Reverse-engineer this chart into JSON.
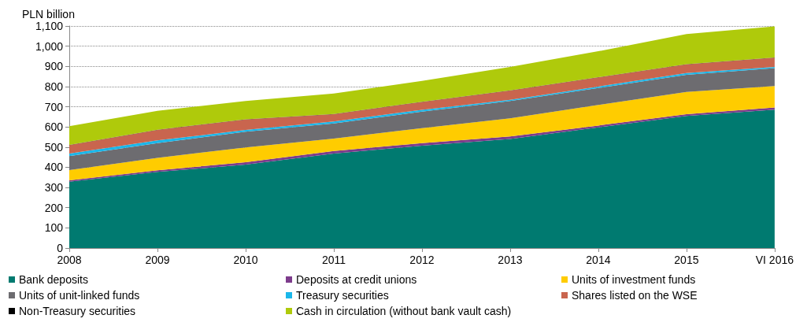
{
  "chart_data": {
    "type": "area",
    "ylabel": "PLN billion",
    "categories": [
      "2008",
      "2009",
      "2010",
      "2011",
      "2012",
      "2013",
      "2014",
      "2015",
      "VI 2016"
    ],
    "stacked": true,
    "ylim": [
      0,
      1100
    ],
    "yticks": [
      0,
      100,
      200,
      300,
      400,
      500,
      600,
      700,
      800,
      900,
      {
        "value": 1000,
        "label": "1,000"
      },
      {
        "value": 1100,
        "label": "1,100"
      }
    ],
    "grid": "y",
    "legend": "bottom",
    "series": [
      {
        "name": "Bank deposits",
        "color": "#007a70",
        "values": [
          329,
          377,
          413,
          468,
          507,
          540,
          598,
          654,
          686
        ]
      },
      {
        "name": "Deposits at credit unions",
        "color": "#7d3c8c",
        "values": [
          6,
          8,
          12,
          13,
          13,
          13,
          9,
          9,
          10
        ]
      },
      {
        "name": "Units of investment funds",
        "color": "#ffcc00",
        "values": [
          51,
          62,
          73,
          61,
          74,
          90,
          102,
          110,
          107
        ]
      },
      {
        "name": "Units of unit-linked funds",
        "color": "#6d6c70",
        "values": [
          69,
          73,
          78,
          75,
          82,
          85,
          84,
          85,
          88
        ]
      },
      {
        "name": "Treasury securities",
        "color": "#1ab7ea",
        "values": [
          13,
          13,
          9,
          10,
          9,
          6,
          7,
          9,
          6
        ]
      },
      {
        "name": "Shares listed on the WSE",
        "color": "#c9654e",
        "values": [
          42,
          52,
          52,
          36,
          39,
          46,
          45,
          43,
          46
        ]
      },
      {
        "name": "Non-Treasury securities",
        "color": "#000000",
        "values": [
          1,
          1,
          1,
          1,
          1,
          1,
          1,
          1,
          1
        ]
      },
      {
        "name": "Cash in circulation (without bank vault cash)",
        "color": "#afca0b",
        "values": [
          93,
          94,
          90,
          102,
          103,
          116,
          129,
          149,
          154
        ]
      }
    ]
  }
}
